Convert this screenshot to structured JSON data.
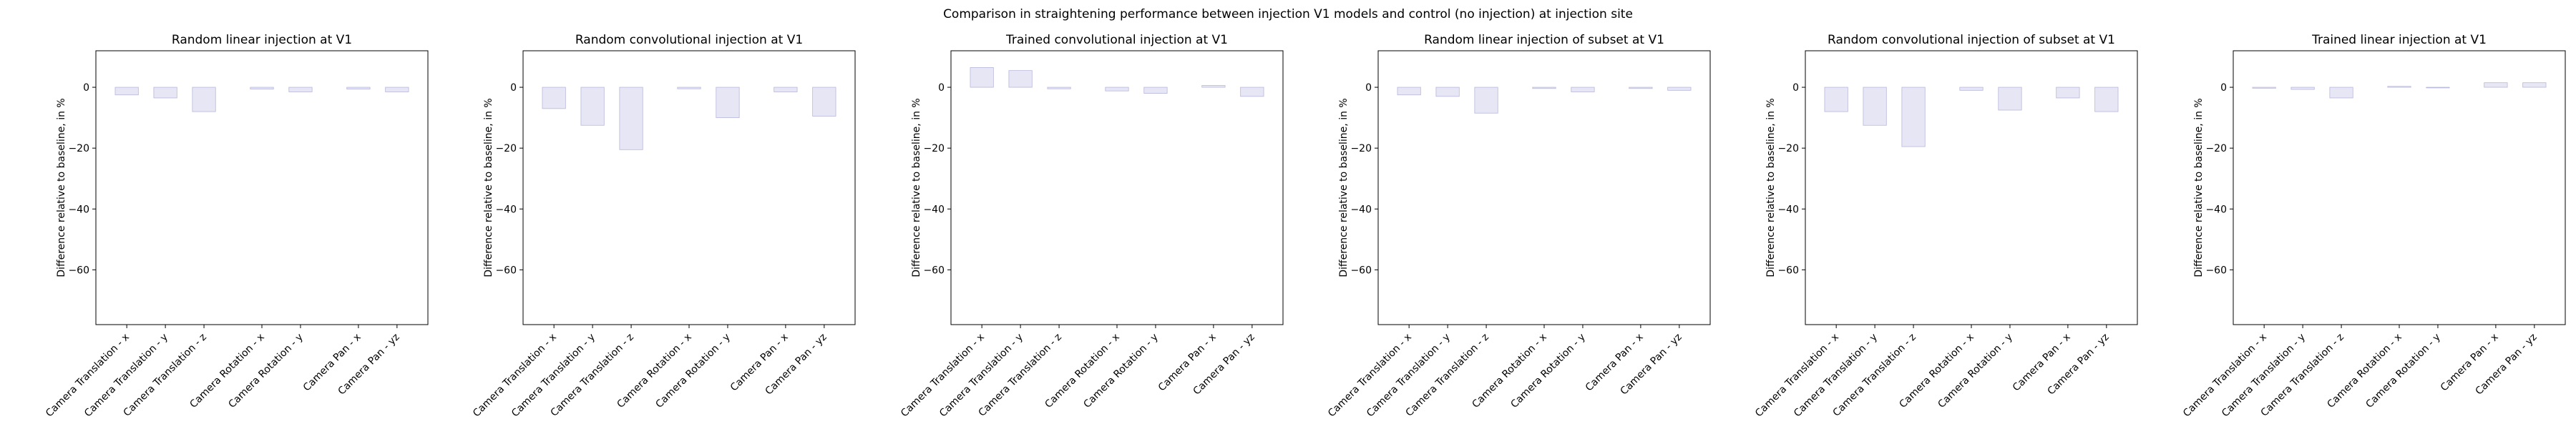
{
  "suptitle": "Comparison in straightening performance between injection V1 models and control (no injection) at injection site",
  "colors": {
    "bar_fill": "#e6e6f5",
    "bar_edge": "#b7b7dc",
    "axis": "#000000"
  },
  "chart_data": [
    {
      "type": "bar",
      "title": "Random linear injection at V1",
      "ylabel": "Difference relative to baseline, in %",
      "ylim": [
        -78,
        12
      ],
      "yticks": [
        0,
        -20,
        -40,
        -60
      ],
      "categories": [
        "Camera Translation - x",
        "Camera Translation - y",
        "Camera Translation - z",
        "Camera Rotation - x",
        "Camera Rotation - y",
        "Camera Pan - x",
        "Camera Pan - yz"
      ],
      "positions": [
        0,
        1,
        2,
        3.5,
        4.5,
        6,
        7
      ],
      "values": [
        -2.5,
        -3.5,
        -8,
        -0.6,
        -1.5,
        -0.6,
        -1.5
      ]
    },
    {
      "type": "bar",
      "title": "Random convolutional injection at V1",
      "ylabel": "Difference relative to baseline, in %",
      "ylim": [
        -78,
        12
      ],
      "yticks": [
        0,
        -20,
        -40,
        -60
      ],
      "categories": [
        "Camera Translation - x",
        "Camera Translation - y",
        "Camera Translation - z",
        "Camera Rotation - x",
        "Camera Rotation - y",
        "Camera Pan - x",
        "Camera Pan - yz"
      ],
      "positions": [
        0,
        1,
        2,
        3.5,
        4.5,
        6,
        7
      ],
      "values": [
        -7,
        -12.5,
        -20.5,
        -0.5,
        -10,
        -1.5,
        -9.5
      ]
    },
    {
      "type": "bar",
      "title": "Trained convolutional injection at V1",
      "ylabel": "Difference relative to baseline, in %",
      "ylim": [
        -78,
        12
      ],
      "yticks": [
        0,
        -20,
        -40,
        -60
      ],
      "categories": [
        "Camera Translation - x",
        "Camera Translation - y",
        "Camera Translation - z",
        "Camera Rotation - x",
        "Camera Rotation - y",
        "Camera Pan - x",
        "Camera Pan - yz"
      ],
      "positions": [
        0,
        1,
        2,
        3.5,
        4.5,
        6,
        7
      ],
      "values": [
        6.5,
        5.5,
        -0.5,
        -1.2,
        -2,
        0.6,
        -3
      ]
    },
    {
      "type": "bar",
      "title": "Random linear injection of subset at V1",
      "ylabel": "Difference relative to baseline, in %",
      "ylim": [
        -78,
        12
      ],
      "yticks": [
        0,
        -20,
        -40,
        -60
      ],
      "categories": [
        "Camera Translation - x",
        "Camera Translation - y",
        "Camera Translation - z",
        "Camera Rotation - x",
        "Camera Rotation - y",
        "Camera Pan - x",
        "Camera Pan - yz"
      ],
      "positions": [
        0,
        1,
        2,
        3.5,
        4.5,
        6,
        7
      ],
      "values": [
        -2.5,
        -3,
        -8.5,
        -0.4,
        -1.5,
        -0.4,
        -1
      ]
    },
    {
      "type": "bar",
      "title": "Random convolutional injection of subset at V1",
      "ylabel": "Difference relative to baseline, in %",
      "ylim": [
        -78,
        12
      ],
      "yticks": [
        0,
        -20,
        -40,
        -60
      ],
      "categories": [
        "Camera Translation - x",
        "Camera Translation - y",
        "Camera Translation - z",
        "Camera Rotation - x",
        "Camera Rotation - y",
        "Camera Pan - x",
        "Camera Pan - yz"
      ],
      "positions": [
        0,
        1,
        2,
        3.5,
        4.5,
        6,
        7
      ],
      "values": [
        -8,
        -12.5,
        -19.5,
        -1,
        -7.5,
        -3.5,
        -8
      ]
    },
    {
      "type": "bar",
      "title": "Trained linear injection at V1",
      "ylabel": "Difference relative to baseline, in %",
      "ylim": [
        -78,
        12
      ],
      "yticks": [
        0,
        -20,
        -40,
        -60
      ],
      "categories": [
        "Camera Translation - x",
        "Camera Translation - y",
        "Camera Translation - z",
        "Camera Rotation - x",
        "Camera Rotation - y",
        "Camera Pan - x",
        "Camera Pan - yz"
      ],
      "positions": [
        0,
        1,
        2,
        3.5,
        4.5,
        6,
        7
      ],
      "values": [
        -0.3,
        -0.7,
        -3.5,
        0.3,
        -0.2,
        1.5,
        1.5
      ]
    }
  ]
}
